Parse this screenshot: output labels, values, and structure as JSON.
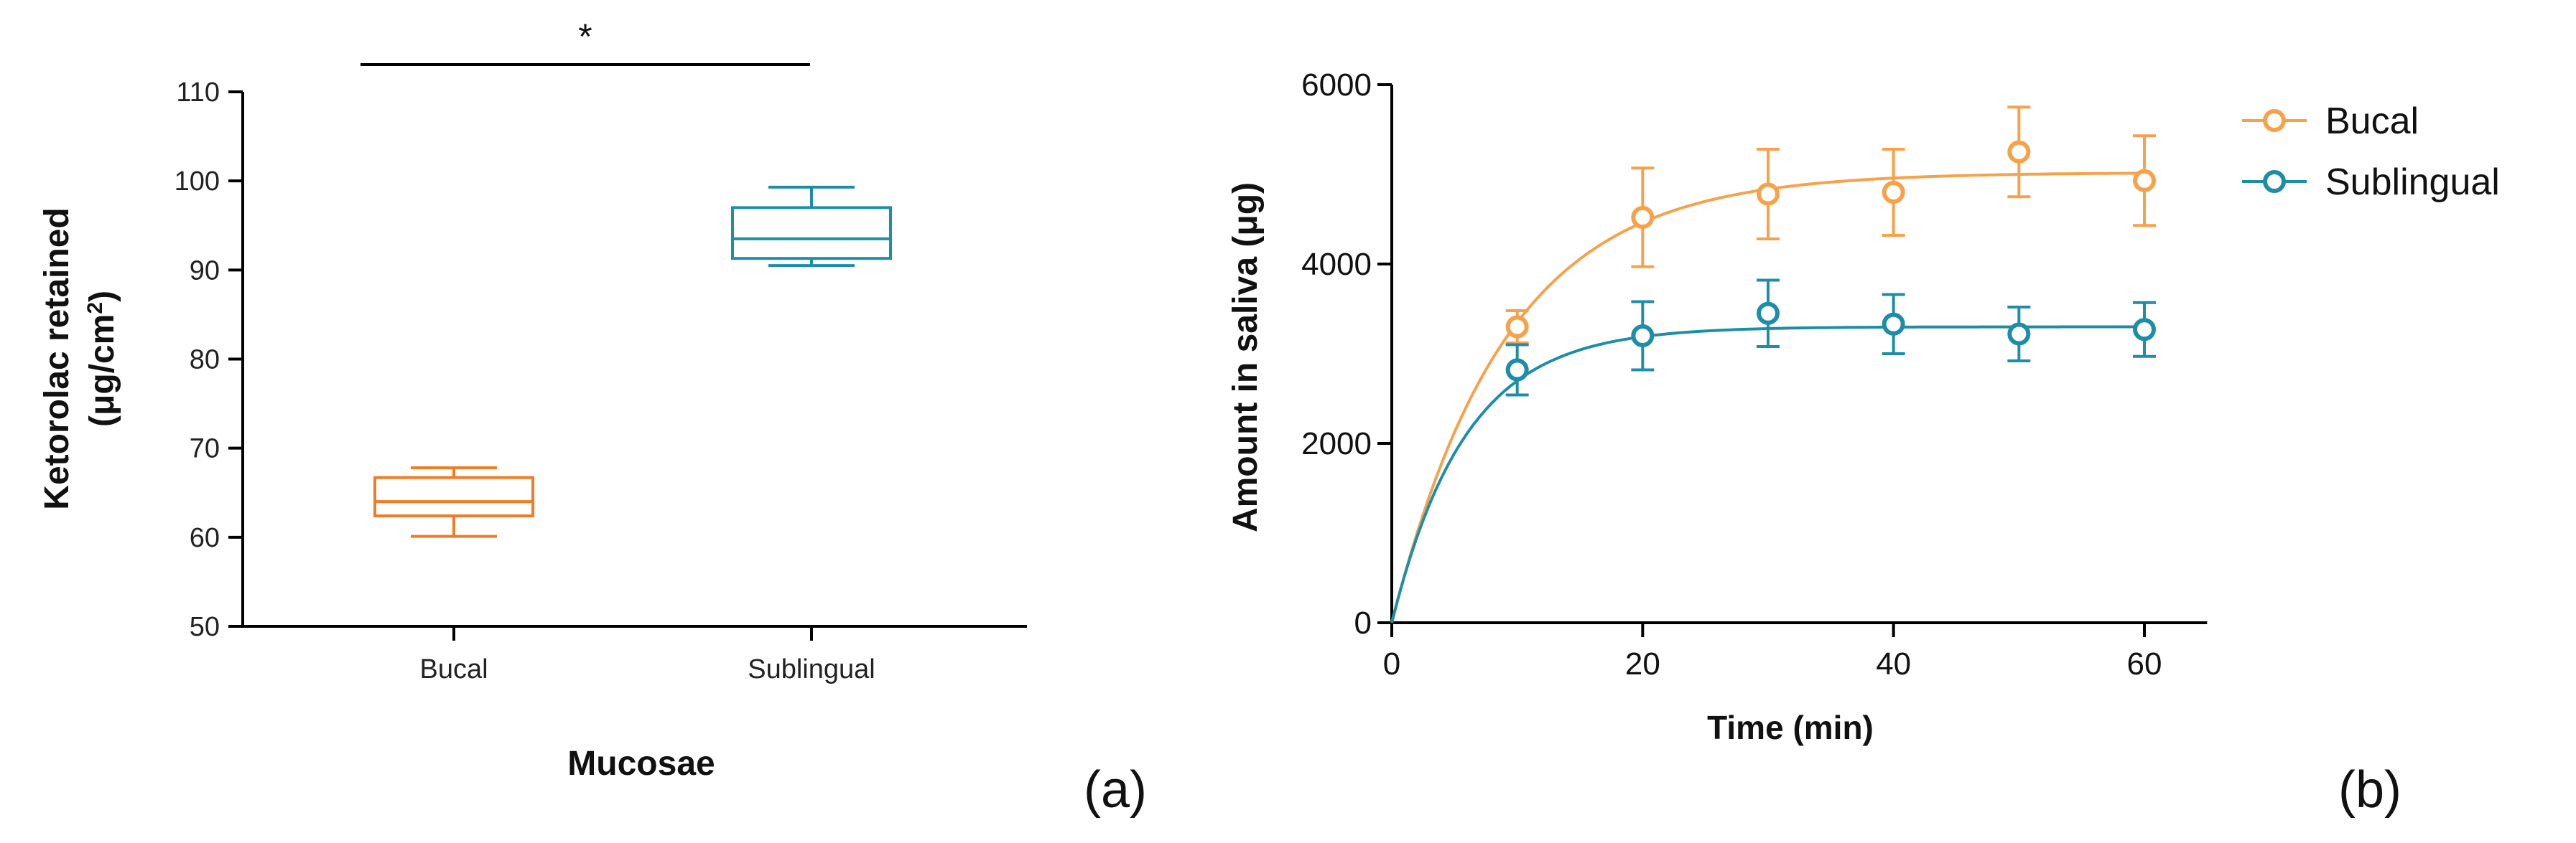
{
  "chart_data": [
    {
      "panel_label": "(a)",
      "type": "box",
      "xlabel": "Mucosae",
      "ylabel_line1": "Ketorolac retained",
      "ylabel_line2_prefix": "(μg/cm",
      "ylabel_line2_sup": "2",
      "ylabel_line2_suffix": ")",
      "ylim": [
        50,
        110
      ],
      "yticks": [
        "50",
        "60",
        "70",
        "80",
        "90",
        "100",
        "110"
      ],
      "categories": [
        "Bucal",
        "Sublingual"
      ],
      "boxes": [
        {
          "name": "Bucal",
          "color": "#f07c24",
          "min": 60.1,
          "q1": 62.4,
          "median": 64.0,
          "q3": 66.7,
          "max": 67.8
        },
        {
          "name": "Sublingual",
          "color": "#1e8ea8",
          "min": 90.5,
          "q1": 91.3,
          "median": 93.5,
          "q3": 97.0,
          "max": 99.3
        }
      ],
      "significance": {
        "text": "*",
        "from": "Bucal",
        "to": "Sublingual"
      }
    },
    {
      "panel_label": "(b)",
      "type": "line",
      "xlabel": "Time (min)",
      "ylabel": "Amount in saliva (μg)",
      "xlim": [
        0,
        65
      ],
      "ylim": [
        0,
        6000
      ],
      "xticks": [
        "0",
        "20",
        "40",
        "60"
      ],
      "yticks": [
        "0",
        "2000",
        "4000",
        "6000"
      ],
      "series": [
        {
          "name": "Bucal",
          "color": "#f6a24a",
          "x": [
            10,
            20,
            30,
            40,
            50,
            60
          ],
          "y": [
            3300,
            4520,
            4780,
            4800,
            5250,
            4930
          ],
          "error": [
            180,
            550,
            500,
            480,
            500,
            500
          ],
          "fit": {
            "plateau": 5020,
            "k": 0.11
          }
        },
        {
          "name": "Sublingual",
          "color": "#1e8ea8",
          "x": [
            10,
            20,
            30,
            40,
            50,
            60
          ],
          "y": [
            2820,
            3200,
            3450,
            3330,
            3220,
            3270
          ],
          "error": [
            280,
            380,
            370,
            330,
            300,
            300
          ],
          "fit": {
            "plateau": 3300,
            "k": 0.17
          }
        }
      ]
    }
  ]
}
